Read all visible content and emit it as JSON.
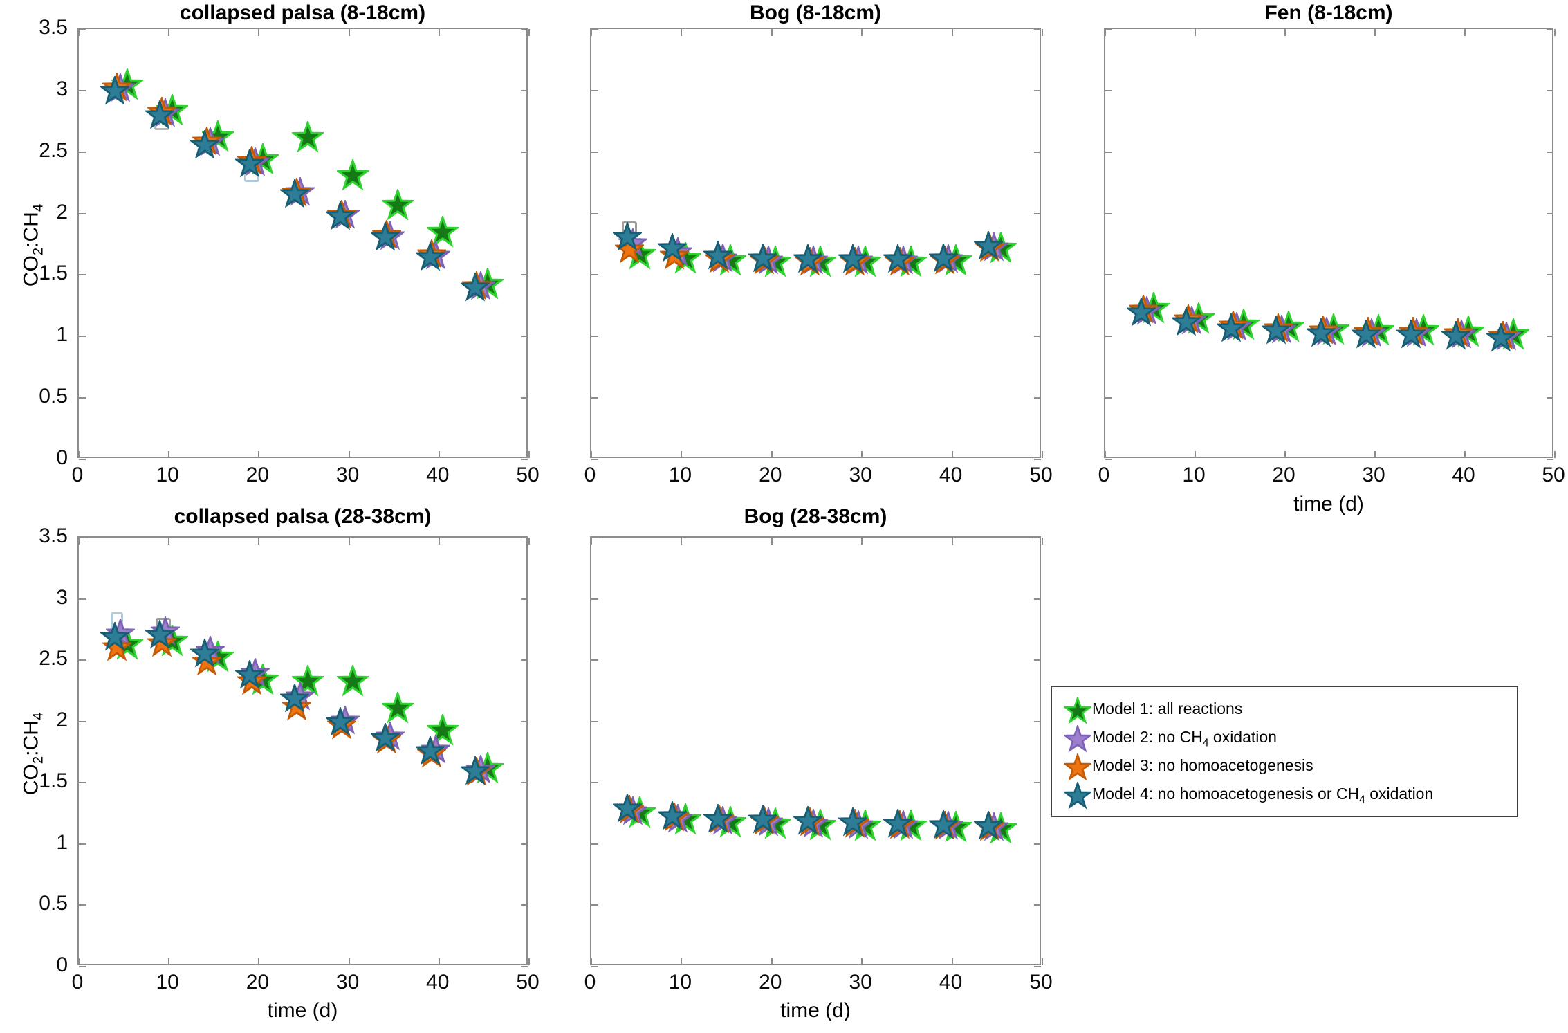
{
  "figure": {
    "background": "#ffffff",
    "axis_color": "#8C8C8C",
    "text_color": "#000000",
    "ylabel_parts": [
      "CO",
      "2",
      ":CH",
      "4"
    ],
    "xlabel": "time (d)",
    "x_ticks": [
      0,
      10,
      20,
      30,
      40,
      50
    ],
    "y_ticks": [
      0,
      0.5,
      1,
      1.5,
      2,
      2.5,
      3,
      3.5
    ],
    "xlim": [
      0,
      50
    ],
    "ylim": [
      0,
      3.5
    ]
  },
  "series_meta": [
    {
      "id": "model1",
      "fill": "#157A15",
      "edge": "#2FD32F",
      "x_offset_days": 1.4,
      "marker": "pentagram",
      "size": 46
    },
    {
      "id": "model2",
      "fill": "#9C80CE",
      "edge": "#7E63B5",
      "x_offset_days": 0.6,
      "marker": "pentagram",
      "size": 42
    },
    {
      "id": "model3",
      "fill": "#EE7411",
      "edge": "#C55A05",
      "x_offset_days": 0.2,
      "marker": "pentagram",
      "size": 42
    },
    {
      "id": "model4",
      "fill": "#2E7D96",
      "edge": "#175D73",
      "x_offset_days": 0.0,
      "marker": "pentagram",
      "size": 42
    }
  ],
  "legend": {
    "items": [
      {
        "pre": "Model 1: all reactions",
        "sub": "",
        "post": "",
        "color": "#157A15",
        "edge": "#2FD32F"
      },
      {
        "pre": "Model 2: no CH",
        "sub": "4",
        "post": " oxidation",
        "color": "#9C80CE",
        "edge": "#7E63B5"
      },
      {
        "pre": "Model 3: no homoacetogenesis",
        "sub": "",
        "post": "",
        "color": "#EE7411",
        "edge": "#C55A05"
      },
      {
        "pre": "Model 4: no homoacetogenesis or CH",
        "sub": "4",
        "post": " oxidation",
        "color": "#2E7D96",
        "edge": "#175D73"
      }
    ]
  },
  "chart_data": [
    {
      "type": "scatter",
      "title": "collapsed palsa (8-18cm)",
      "xlabel": "",
      "ylabel": "CO2:CH4",
      "xlim": [
        0,
        50
      ],
      "ylim": [
        0,
        3.5
      ],
      "x": [
        4,
        9,
        14,
        19,
        24,
        29,
        34,
        39,
        44
      ],
      "series": [
        {
          "name": "Model 1: all reactions",
          "values": [
            3.05,
            2.84,
            2.63,
            2.44,
            2.62,
            2.31,
            2.07,
            1.85,
            1.43
          ]
        },
        {
          "name": "Model 2: no CH4 oxidation",
          "values": [
            3.02,
            2.82,
            2.58,
            2.42,
            2.18,
            1.99,
            1.82,
            1.66,
            1.41
          ]
        },
        {
          "name": "Model 3: no homoacetogenesis",
          "values": [
            3.03,
            2.83,
            2.59,
            2.43,
            2.17,
            1.99,
            1.83,
            1.67,
            1.41
          ]
        },
        {
          "name": "Model 4: no homoacetogenesis or CH4 oxidation",
          "values": [
            3.0,
            2.8,
            2.56,
            2.41,
            2.16,
            1.98,
            1.81,
            1.65,
            1.4
          ]
        }
      ]
    },
    {
      "type": "scatter",
      "title": "Bog (8-18cm)",
      "xlabel": "",
      "ylabel": "CO2:CH4",
      "xlim": [
        0,
        50
      ],
      "ylim": [
        0,
        3.5
      ],
      "x": [
        4,
        9,
        14,
        19,
        24,
        29,
        34,
        39,
        44
      ],
      "series": [
        {
          "name": "Model 1: all reactions",
          "values": [
            1.67,
            1.64,
            1.62,
            1.61,
            1.61,
            1.61,
            1.61,
            1.62,
            1.72
          ]
        },
        {
          "name": "Model 2: no CH4 oxidation",
          "values": [
            1.76,
            1.69,
            1.64,
            1.62,
            1.62,
            1.62,
            1.62,
            1.63,
            1.73
          ]
        },
        {
          "name": "Model 3: no homoacetogenesis",
          "values": [
            1.71,
            1.66,
            1.63,
            1.62,
            1.61,
            1.61,
            1.61,
            1.62,
            1.72
          ]
        },
        {
          "name": "Model 4: no homoacetogenesis or CH4 oxidation",
          "values": [
            1.81,
            1.72,
            1.66,
            1.64,
            1.63,
            1.63,
            1.63,
            1.64,
            1.74
          ]
        }
      ]
    },
    {
      "type": "scatter",
      "title": "Fen (8-18cm)",
      "xlabel": "time (d)",
      "ylabel": "CO2:CH4",
      "xlim": [
        0,
        50
      ],
      "ylim": [
        0,
        3.5
      ],
      "x": [
        4,
        9,
        14,
        19,
        24,
        29,
        34,
        39,
        44
      ],
      "series": [
        {
          "name": "Model 1: all reactions",
          "values": [
            1.23,
            1.15,
            1.1,
            1.08,
            1.06,
            1.05,
            1.05,
            1.04,
            1.02
          ]
        },
        {
          "name": "Model 2: no CH4 oxidation",
          "values": [
            1.21,
            1.13,
            1.08,
            1.06,
            1.04,
            1.03,
            1.03,
            1.02,
            1.0
          ]
        },
        {
          "name": "Model 3: no homoacetogenesis",
          "values": [
            1.22,
            1.14,
            1.09,
            1.07,
            1.05,
            1.04,
            1.04,
            1.03,
            1.01
          ]
        },
        {
          "name": "Model 4: no homoacetogenesis or CH4 oxidation",
          "values": [
            1.2,
            1.12,
            1.07,
            1.05,
            1.03,
            1.02,
            1.02,
            1.01,
            0.99
          ]
        }
      ]
    },
    {
      "type": "scatter",
      "title": "collapsed palsa (28-38cm)",
      "xlabel": "time (d)",
      "ylabel": "CO2:CH4",
      "xlim": [
        0,
        50
      ],
      "ylim": [
        0,
        3.5
      ],
      "x": [
        4,
        9,
        14,
        19,
        24,
        29,
        34,
        39,
        44
      ],
      "series": [
        {
          "name": "Model 1: all reactions",
          "values": [
            2.63,
            2.66,
            2.53,
            2.34,
            2.33,
            2.33,
            2.11,
            1.93,
            1.62
          ]
        },
        {
          "name": "Model 2: no CH4 oxidation",
          "values": [
            2.72,
            2.74,
            2.58,
            2.4,
            2.21,
            2.01,
            1.88,
            1.77,
            1.61
          ]
        },
        {
          "name": "Model 3: no homoacetogenesis",
          "values": [
            2.61,
            2.64,
            2.49,
            2.33,
            2.12,
            1.97,
            1.85,
            1.74,
            1.59
          ]
        },
        {
          "name": "Model 4: no homoacetogenesis or CH4 oxidation",
          "values": [
            2.69,
            2.71,
            2.56,
            2.38,
            2.19,
            2.0,
            1.87,
            1.76,
            1.6
          ]
        }
      ]
    },
    {
      "type": "scatter",
      "title": "Bog (28-38cm)",
      "xlabel": "time (d)",
      "ylabel": "CO2:CH4",
      "xlim": [
        0,
        50
      ],
      "ylim": [
        0,
        3.5
      ],
      "x": [
        4,
        9,
        14,
        19,
        24,
        29,
        34,
        39,
        44
      ],
      "series": [
        {
          "name": "Model 1: all reactions",
          "values": [
            1.26,
            1.2,
            1.18,
            1.17,
            1.16,
            1.15,
            1.15,
            1.14,
            1.13
          ]
        },
        {
          "name": "Model 2: no CH4 oxidation",
          "values": [
            1.27,
            1.21,
            1.19,
            1.18,
            1.17,
            1.16,
            1.16,
            1.15,
            1.14
          ]
        },
        {
          "name": "Model 3: no homoacetogenesis",
          "values": [
            1.28,
            1.22,
            1.2,
            1.19,
            1.18,
            1.17,
            1.16,
            1.15,
            1.14
          ]
        },
        {
          "name": "Model 4: no homoacetogenesis or CH4 oxidation",
          "values": [
            1.29,
            1.23,
            1.21,
            1.2,
            1.19,
            1.18,
            1.17,
            1.16,
            1.15
          ]
        }
      ]
    }
  ],
  "ghost_markers": [
    {
      "subplot": 0,
      "t": 9.2,
      "value": 2.72,
      "shape": "flat",
      "color": "#B9B9B9"
    },
    {
      "subplot": 0,
      "t": 19.2,
      "value": 2.31,
      "shape": "pentagon",
      "color": "#AFCBDE"
    },
    {
      "subplot": 1,
      "t": 4.2,
      "value": 1.88,
      "shape": "square",
      "color": "#9E9E9E"
    },
    {
      "subplot": 3,
      "t": 4.2,
      "value": 2.8,
      "shape": "tall",
      "color": "#AFCBDE"
    },
    {
      "subplot": 3,
      "t": 9.4,
      "value": 2.79,
      "shape": "square",
      "color": "#9E9E9E"
    }
  ]
}
